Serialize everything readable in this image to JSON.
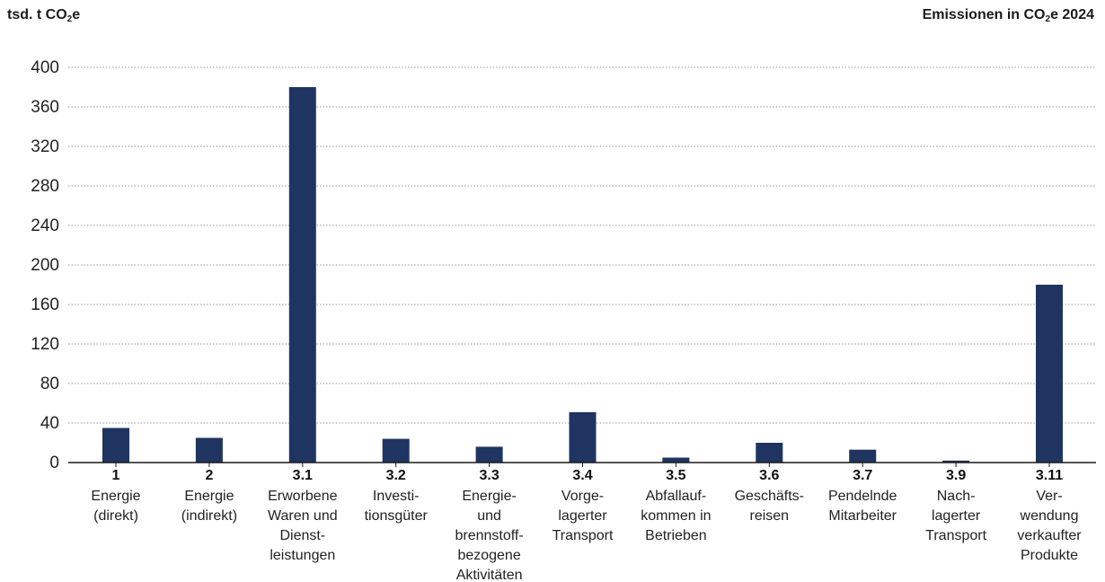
{
  "chart_data": {
    "type": "bar",
    "unit_label": {
      "pre": "tsd. t CO",
      "sub": "2",
      "post": "e"
    },
    "title": {
      "pre": "Emissionen in CO",
      "sub": "2",
      "post": "e 2024"
    },
    "ylim": [
      0,
      400
    ],
    "y_ticks": [
      "0",
      "40",
      "80",
      "120",
      "160",
      "200",
      "240",
      "280",
      "320",
      "360",
      "400"
    ],
    "grid": true,
    "bar_color": "#1f3461",
    "categories": [
      {
        "code": "1",
        "label_lines": [
          "Energie",
          "(direkt)"
        ]
      },
      {
        "code": "2",
        "label_lines": [
          "Energie",
          "(indirekt)"
        ]
      },
      {
        "code": "3.1",
        "label_lines": [
          "Erworbene",
          "Waren und",
          "Dienst-",
          "leistungen"
        ]
      },
      {
        "code": "3.2",
        "label_lines": [
          "Investi-",
          "tionsgüter"
        ]
      },
      {
        "code": "3.3",
        "label_lines": [
          "Energie-",
          "und",
          "brennstoff-",
          "bezogene",
          "Aktivitäten"
        ]
      },
      {
        "code": "3.4",
        "label_lines": [
          "Vorge-",
          "lagerter",
          "Transport"
        ]
      },
      {
        "code": "3.5",
        "label_lines": [
          "Abfallauf-",
          "kommen in",
          "Betrieben"
        ]
      },
      {
        "code": "3.6",
        "label_lines": [
          "Geschäfts-",
          "reisen"
        ]
      },
      {
        "code": "3.7",
        "label_lines": [
          "Pendelnde",
          "Mitarbeiter"
        ]
      },
      {
        "code": "3.9",
        "label_lines": [
          "Nach-",
          "lagerter",
          "Transport"
        ]
      },
      {
        "code": "3.11",
        "label_lines": [
          "Ver-",
          "wendung",
          "verkaufter",
          "Produkte"
        ]
      }
    ],
    "values": [
      35,
      25,
      380,
      24,
      16,
      51,
      5,
      20,
      13,
      2,
      180
    ]
  }
}
